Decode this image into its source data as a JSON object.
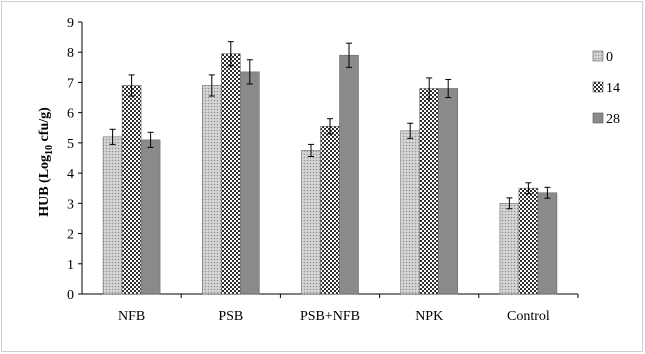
{
  "chart_data": {
    "type": "bar",
    "ylabel_parts": {
      "main": "HUB (Log",
      "sub": "10",
      "unit": " cfu/g)"
    },
    "ylim": [
      0,
      9
    ],
    "yticks": [
      0,
      1,
      2,
      3,
      4,
      5,
      6,
      7,
      8,
      9
    ],
    "grid": false,
    "legend_position": "right",
    "categories": [
      "NFB",
      "PSB",
      "PSB+NFB",
      "NPK",
      "Control"
    ],
    "series": [
      {
        "name": "0",
        "pattern": "dots",
        "values": [
          5.2,
          6.9,
          4.75,
          5.4,
          3.0
        ],
        "errors": [
          0.25,
          0.35,
          0.2,
          0.25,
          0.18
        ]
      },
      {
        "name": "14",
        "pattern": "checker",
        "values": [
          6.9,
          7.95,
          5.55,
          6.8,
          3.5
        ],
        "errors": [
          0.35,
          0.4,
          0.25,
          0.35,
          0.18
        ]
      },
      {
        "name": "28",
        "pattern": "solid",
        "values": [
          5.1,
          7.35,
          7.9,
          6.8,
          3.35
        ],
        "errors": [
          0.25,
          0.4,
          0.4,
          0.3,
          0.18
        ]
      }
    ],
    "colors": {
      "dots": "#bdbdbd",
      "checker_dark": "#3a3a3a",
      "checker_light": "#ffffff",
      "solid": "#8a8a8a",
      "axis": "#000000"
    }
  }
}
